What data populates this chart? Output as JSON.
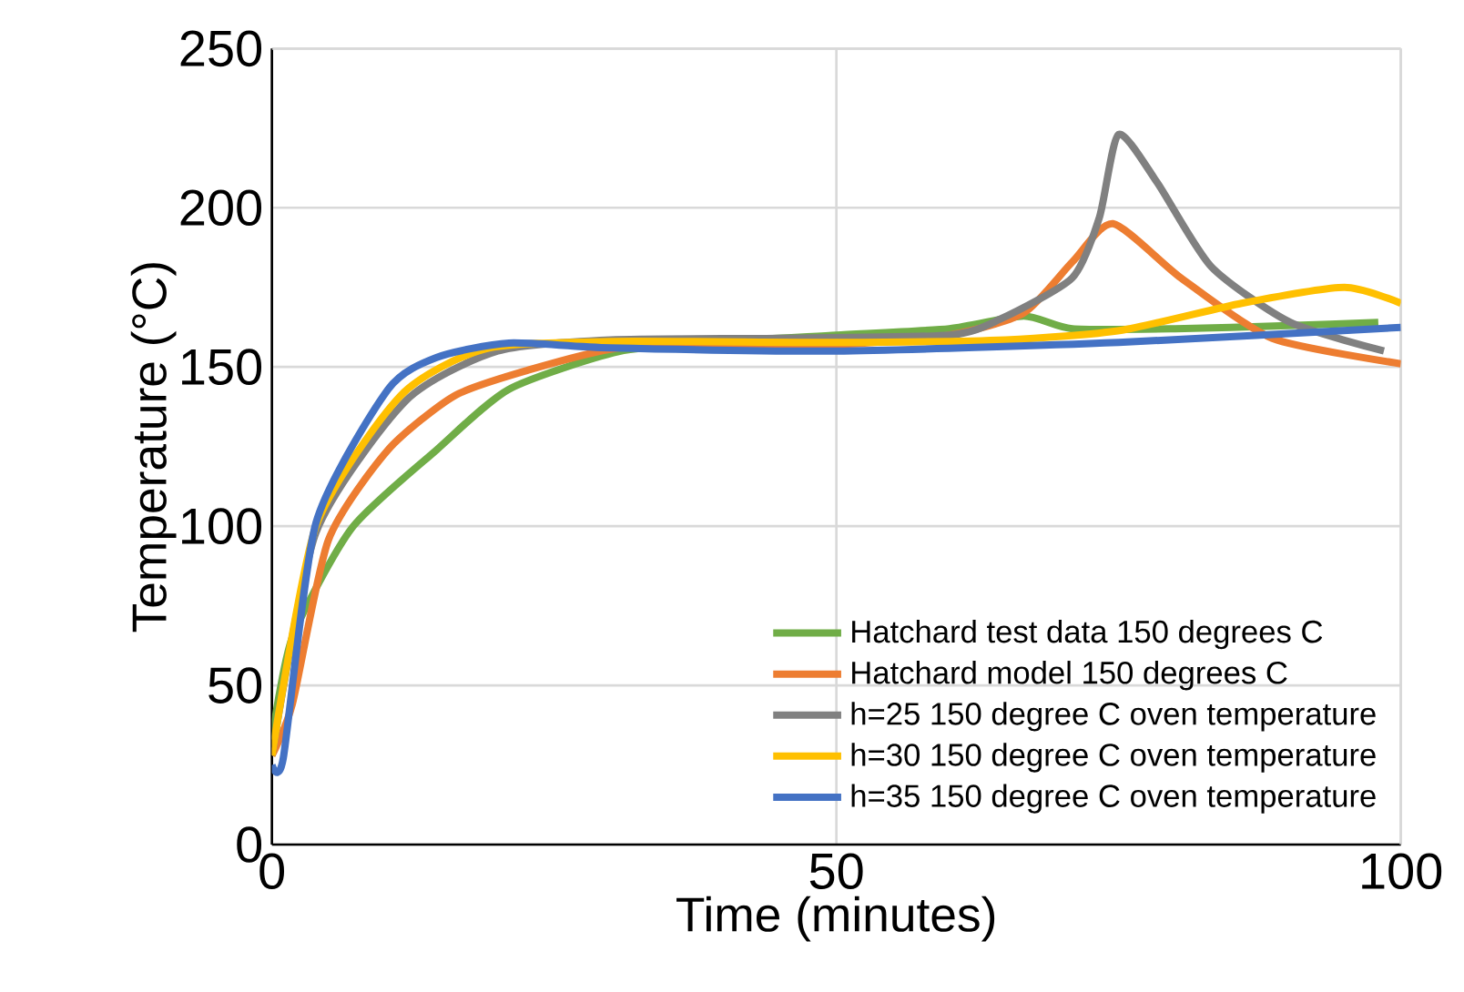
{
  "chart_data": {
    "type": "line",
    "xlabel": "Time (minutes)",
    "ylabel": "Temperature (°C)",
    "xlim": [
      0,
      100
    ],
    "ylim": [
      0,
      250
    ],
    "xticks": [
      0,
      50,
      100
    ],
    "yticks": [
      0,
      50,
      100,
      150,
      200,
      250
    ],
    "grid": true,
    "legend": "bottom right",
    "marker": "none",
    "line_style": "solid",
    "series": [
      {
        "name": "Hatchard test data 150 degrees C",
        "color": "#70ad47",
        "x": [
          0,
          1.8,
          7.1,
          14.6,
          21,
          30.7,
          40,
          50,
          60,
          66.6,
          70.9,
          80,
          90,
          98
        ],
        "values": [
          33,
          65,
          99.5,
          124,
          143,
          154.8,
          158,
          160,
          162,
          166,
          162,
          162,
          163,
          164
        ]
      },
      {
        "name": "Hatchard model 150  degrees C",
        "color": "#ed7d31",
        "x": [
          0,
          1.8,
          5,
          10.3,
          16.2,
          22.7,
          30.7,
          40,
          50,
          60,
          66.6,
          70.9,
          74.5,
          80.5,
          88.6,
          100
        ],
        "values": [
          28,
          44,
          95.6,
          124,
          141,
          149,
          156,
          157,
          157,
          160,
          167,
          183,
          195,
          178,
          159,
          151
        ]
      },
      {
        "name": "h=25 150 degree C oven temperature",
        "color": "#808080",
        "x": [
          0,
          3.9,
          11.9,
          20,
          30,
          45,
          60,
          64.5,
          70.9,
          73.3,
          75,
          78.4,
          83.2,
          90.2,
          98.5
        ],
        "values": [
          28,
          98,
          139.5,
          155,
          158.5,
          159,
          160,
          165,
          178,
          197,
          223,
          208,
          181.5,
          164,
          155
        ]
      },
      {
        "name": "h=30 150 degree C oven temperature",
        "color": "#ffc000",
        "x": [
          0,
          3.9,
          11.4,
          18.9,
          30,
          50,
          65,
          75.2,
          85.9,
          95,
          100
        ],
        "values": [
          28,
          100,
          141,
          155.7,
          158,
          157.7,
          158.5,
          161.5,
          170,
          175,
          170
        ]
      },
      {
        "name": "h=35 150 degree C oven temperature",
        "color": "#4472c4",
        "x": [
          0,
          1,
          3.9,
          10.3,
          14.6,
          21,
          30,
          50,
          75,
          100
        ],
        "values": [
          25,
          27,
          101,
          143,
          153,
          157.5,
          156,
          155,
          157.7,
          162.4
        ]
      }
    ]
  }
}
